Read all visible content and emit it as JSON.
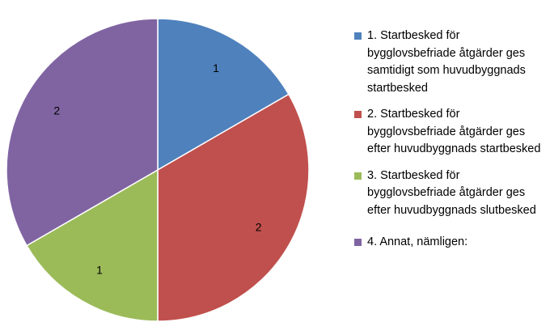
{
  "chart_data": {
    "type": "pie",
    "title": "",
    "categories": [
      "1. Startbesked för bygglovsbefriade åtgärder ges samtidigt som huvudbyggnads startbesked",
      "2. Startbesked för bygglovsbefriade åtgärder ges efter huvudbyggnads startbesked",
      "3. Startbesked för bygglovsbefriade åtgärder ges efter huvudbyggnads slutbesked",
      "4. Annat, nämligen:"
    ],
    "values": [
      1,
      2,
      1,
      2
    ],
    "colors": [
      "#4F81BD",
      "#C0504D",
      "#9BBB59",
      "#8064A2"
    ],
    "legend": "right",
    "data_labels": true
  }
}
